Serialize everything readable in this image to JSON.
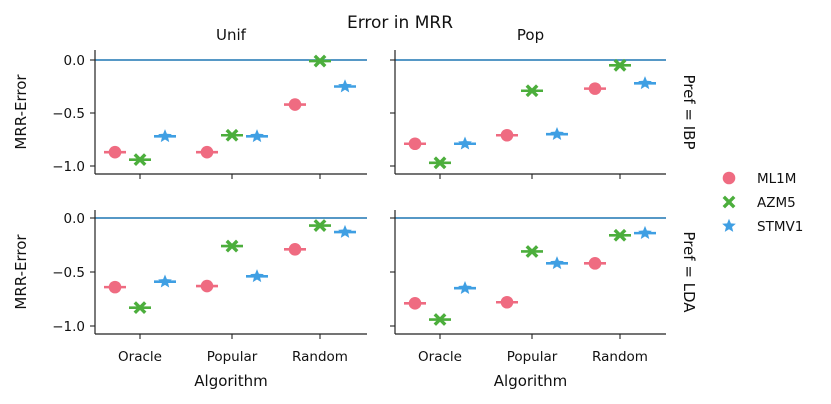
{
  "title": "Error in MRR",
  "colors": {
    "ML1M": "#ef6b81",
    "AZM5": "#4cae3c",
    "STMV1": "#3f9fe3",
    "zero_line": "#1f77b4",
    "axis": "#222222"
  },
  "chart_data": {
    "type": "scatter",
    "title": "Error in MRR",
    "column_facet_labels": [
      "Unif",
      "Pop"
    ],
    "row_facet_labels": [
      "Pref = IBP",
      "Pref = LDA"
    ],
    "xlabel": "Algorithm",
    "ylabel": "MRR-Error",
    "categories": [
      "Oracle",
      "Popular",
      "Random"
    ],
    "ylim": [
      -1.05,
      0.06
    ],
    "yticks": [
      0.0,
      -0.5,
      -1.0
    ],
    "ytick_labels": [
      "0.0",
      "−0.5",
      "−1.0"
    ],
    "reference_line_y": 0,
    "legend_placement": "right",
    "series": [
      {
        "name": "ML1M",
        "marker": "circle"
      },
      {
        "name": "AZM5",
        "marker": "x"
      },
      {
        "name": "STMV1",
        "marker": "star"
      }
    ],
    "panels": [
      {
        "row": "Pref = IBP",
        "col": "Unif",
        "values": {
          "ML1M": [
            -0.87,
            -0.87,
            -0.42
          ],
          "AZM5": [
            -0.94,
            -0.71,
            -0.01
          ],
          "STMV1": [
            -0.72,
            -0.72,
            -0.25
          ]
        }
      },
      {
        "row": "Pref = IBP",
        "col": "Pop",
        "values": {
          "ML1M": [
            -0.79,
            -0.71,
            -0.27
          ],
          "AZM5": [
            -0.97,
            -0.29,
            -0.05
          ],
          "STMV1": [
            -0.79,
            -0.7,
            -0.22
          ]
        }
      },
      {
        "row": "Pref = LDA",
        "col": "Unif",
        "values": {
          "ML1M": [
            -0.64,
            -0.63,
            -0.29
          ],
          "AZM5": [
            -0.83,
            -0.26,
            -0.07
          ],
          "STMV1": [
            -0.59,
            -0.54,
            -0.13
          ]
        }
      },
      {
        "row": "Pref = LDA",
        "col": "Pop",
        "values": {
          "ML1M": [
            -0.79,
            -0.78,
            -0.42
          ],
          "AZM5": [
            -0.94,
            -0.31,
            -0.16
          ],
          "STMV1": [
            -0.65,
            -0.42,
            -0.14
          ]
        }
      }
    ]
  }
}
